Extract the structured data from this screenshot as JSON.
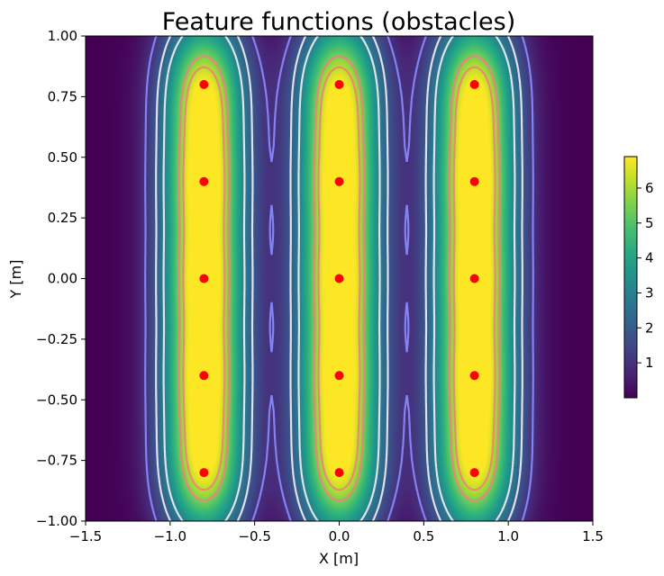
{
  "chart_data": {
    "type": "heatmap",
    "title": "Feature functions (obstacles)",
    "xlabel": "X [m]",
    "ylabel": "Y [m]",
    "xlim": [
      -1.5,
      1.5
    ],
    "ylim": [
      -1.0,
      1.0
    ],
    "x_ticks": [
      -1.5,
      -1.0,
      -0.5,
      0.0,
      0.5,
      1.0,
      1.5
    ],
    "x_tick_labels": [
      "−1.5",
      "−1.0",
      "−0.5",
      "0.0",
      "0.5",
      "1.0",
      "1.5"
    ],
    "y_ticks": [
      1.0,
      0.75,
      0.5,
      0.25,
      0.0,
      -0.25,
      -0.5,
      -0.75,
      -1.0
    ],
    "y_tick_labels": [
      "1.00",
      "0.75",
      "0.50",
      "0.25",
      "0.00",
      "−0.25",
      "−0.50",
      "−0.75",
      "−1.00"
    ],
    "colormap": "viridis",
    "colorbar": {
      "range": [
        0,
        6.9
      ],
      "ticks": [
        1,
        2,
        3,
        4,
        5,
        6
      ],
      "tick_labels": [
        "1",
        "2",
        "3",
        "4",
        "5",
        "6"
      ],
      "placement": "right"
    },
    "obstacles": {
      "x": [
        -0.8,
        -0.8,
        -0.8,
        -0.8,
        -0.8,
        0.0,
        0.0,
        0.0,
        0.0,
        0.0,
        0.8,
        0.8,
        0.8,
        0.8,
        0.8
      ],
      "y": [
        0.8,
        0.4,
        0.0,
        -0.4,
        -0.8,
        0.8,
        0.4,
        0.0,
        -0.4,
        -0.8,
        0.8,
        0.4,
        0.0,
        -0.4,
        -0.8
      ],
      "marker_color": "#ff0000"
    },
    "contours": {
      "style": "dashed",
      "colors": [
        "#8c8cff",
        "#f4f0f4",
        "#f08080"
      ]
    },
    "grid": false
  }
}
